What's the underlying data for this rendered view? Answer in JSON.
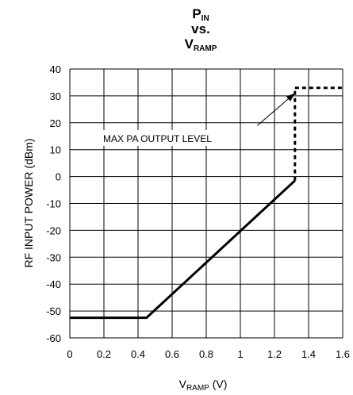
{
  "chart_data": {
    "type": "line",
    "title": {
      "line1_main": "P",
      "line1_sub": "IN",
      "line2": "vs.",
      "line3_main": "V",
      "line3_sub": "RAMP"
    },
    "xlabel": {
      "main": "V",
      "sub": "RAMP",
      "suffix": " (V)"
    },
    "ylabel": "RF INPUT POWER (dBm)",
    "xlim": [
      0,
      1.6
    ],
    "ylim": [
      -60,
      40
    ],
    "xticks": [
      "0",
      "0.2",
      "0.4",
      "0.6",
      "0.8",
      "1",
      "1.2",
      "1.4",
      "1.6"
    ],
    "yticks": [
      "40",
      "30",
      "20",
      "10",
      "0",
      "-10",
      "-20",
      "-30",
      "-40",
      "-50",
      "-60"
    ],
    "grid": true,
    "series": [
      {
        "style": "solid",
        "x": [
          0,
          0.45,
          1.32
        ],
        "y": [
          -52.5,
          -52.5,
          -1.5
        ]
      },
      {
        "style": "dashed",
        "x": [
          1.32,
          1.32,
          1.6
        ],
        "y": [
          -1.5,
          33,
          33
        ]
      }
    ],
    "annotation": {
      "text": "MAX PA OUTPUT LEVEL",
      "target": [
        1.32,
        31
      ],
      "from": [
        1.1,
        19
      ]
    }
  }
}
